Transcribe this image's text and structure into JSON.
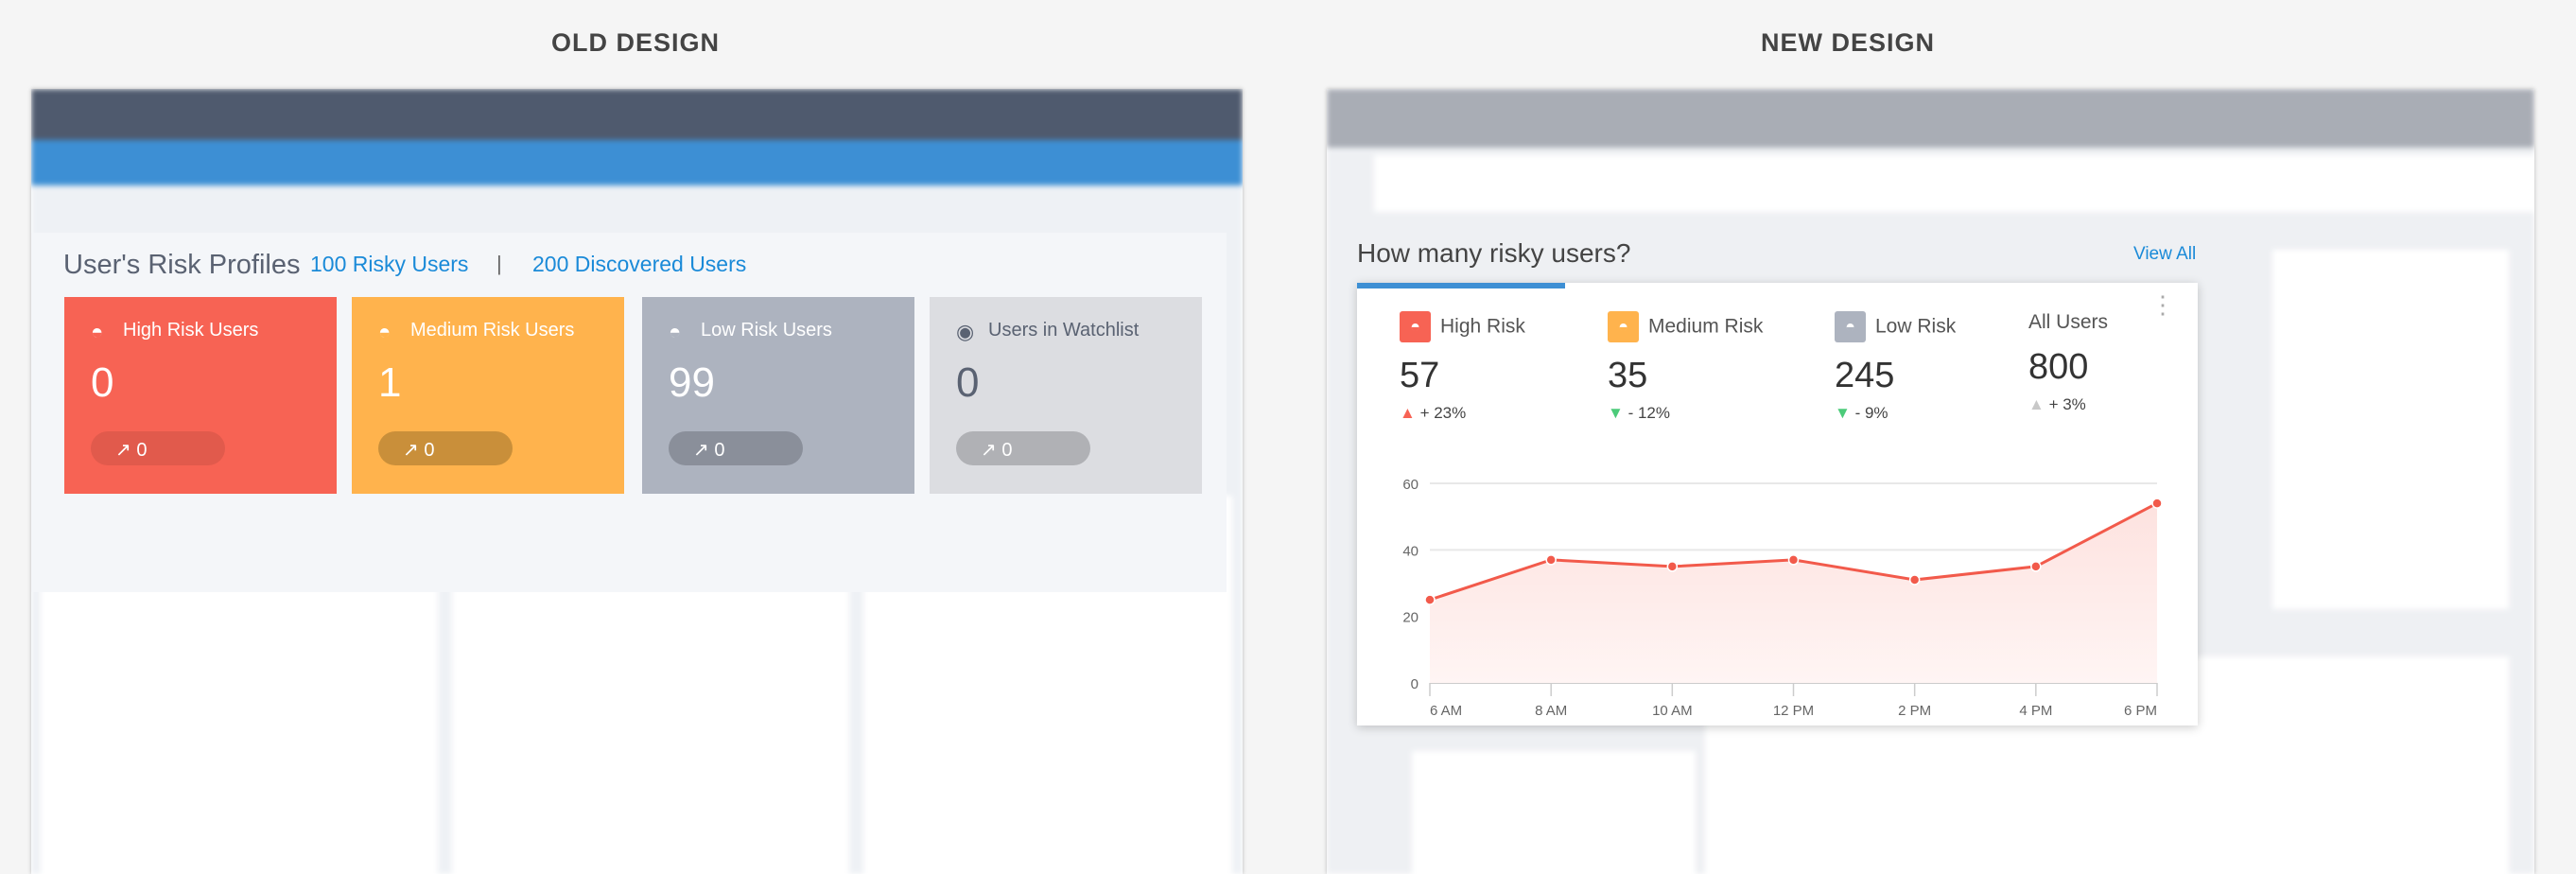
{
  "headings": {
    "old": "OLD DESIGN",
    "new": "NEW DESIGN"
  },
  "old": {
    "title": "User's Risk Profiles",
    "risky_link": "100 Risky Users",
    "separator": "|",
    "discovered_link": "200 Discovered Users",
    "cards": [
      {
        "label": "High Risk Users",
        "value": "0",
        "trend": "0",
        "color": "#f76354",
        "pill": "#e15a4c",
        "text": "#ffffff"
      },
      {
        "label": "Medium Risk Users",
        "value": "1",
        "trend": "0",
        "color": "#ffb34d",
        "pill": "#c98f3a",
        "text": "#ffffff"
      },
      {
        "label": "Low Risk Users",
        "value": "99",
        "trend": "0",
        "color": "#adb3bf",
        "pill": "#8a8f9a",
        "text": "#ffffff"
      },
      {
        "label": "Users in Watchlist",
        "value": "0",
        "trend": "0",
        "color": "#dcdde1",
        "pill": "#b0b1b5",
        "text": "#5a6272"
      }
    ]
  },
  "new": {
    "title": "How many risky users?",
    "view_all": "View All",
    "stats": [
      {
        "label": "High Risk",
        "value": "57",
        "delta": "+ 23%",
        "dir": "up",
        "icon_color": "#f76354",
        "arrow_color": "#f76354"
      },
      {
        "label": "Medium Risk",
        "value": "35",
        "delta": "- 12%",
        "dir": "down",
        "icon_color": "#ffb34d",
        "arrow_color": "#4ccb7a"
      },
      {
        "label": "Low Risk",
        "value": "245",
        "delta": "- 9%",
        "dir": "down",
        "icon_color": "#adb3bf",
        "arrow_color": "#4ccb7a"
      },
      {
        "label": "All Users",
        "value": "800",
        "delta": "+ 3%",
        "dir": "up",
        "icon_color": null,
        "arrow_color": "#c8c8c8"
      }
    ]
  },
  "chart_data": {
    "type": "area",
    "x": [
      "6 AM",
      "8 AM",
      "10 AM",
      "12 PM",
      "2 PM",
      "4 PM",
      "6 PM"
    ],
    "values": [
      25,
      37,
      35,
      37,
      31,
      35,
      54
    ],
    "yticks": [
      "0",
      "20",
      "40",
      "60"
    ],
    "ylim": [
      0,
      60
    ],
    "color": "#f25a4b",
    "grid": true
  }
}
